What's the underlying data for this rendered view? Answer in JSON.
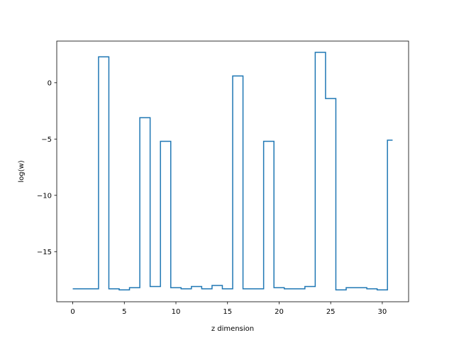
{
  "chart_data": {
    "type": "line",
    "drawstyle": "steps-mid",
    "title": "",
    "xlabel": "z dimension",
    "ylabel": "log(w)",
    "xlim": [
      -1.55,
      32.55
    ],
    "ylim": [
      -19.45,
      3.7
    ],
    "xticks": [
      0,
      5,
      10,
      15,
      20,
      25,
      30
    ],
    "yticks": [
      -15,
      -10,
      -5,
      0
    ],
    "ytick_labels": [
      "−15",
      "−10",
      "−5",
      "0"
    ],
    "grid": false,
    "legend": "none",
    "series": [
      {
        "color": "#1f77b4",
        "x": [
          0,
          1,
          2,
          3,
          4,
          5,
          6,
          7,
          8,
          9,
          10,
          11,
          12,
          13,
          14,
          15,
          16,
          17,
          18,
          19,
          20,
          21,
          22,
          23,
          24,
          25,
          26,
          27,
          28,
          29,
          30,
          31
        ],
        "y": [
          -18.3,
          -18.3,
          -18.3,
          2.3,
          -18.3,
          -18.4,
          -18.2,
          -3.1,
          -18.1,
          -5.2,
          -18.2,
          -18.3,
          -18.1,
          -18.3,
          -18.0,
          -18.3,
          0.6,
          -18.3,
          -18.3,
          -5.2,
          -18.2,
          -18.3,
          -18.3,
          -18.1,
          2.7,
          -1.4,
          -18.4,
          -18.2,
          -18.2,
          -18.3,
          -18.4,
          -5.1
        ]
      }
    ]
  }
}
